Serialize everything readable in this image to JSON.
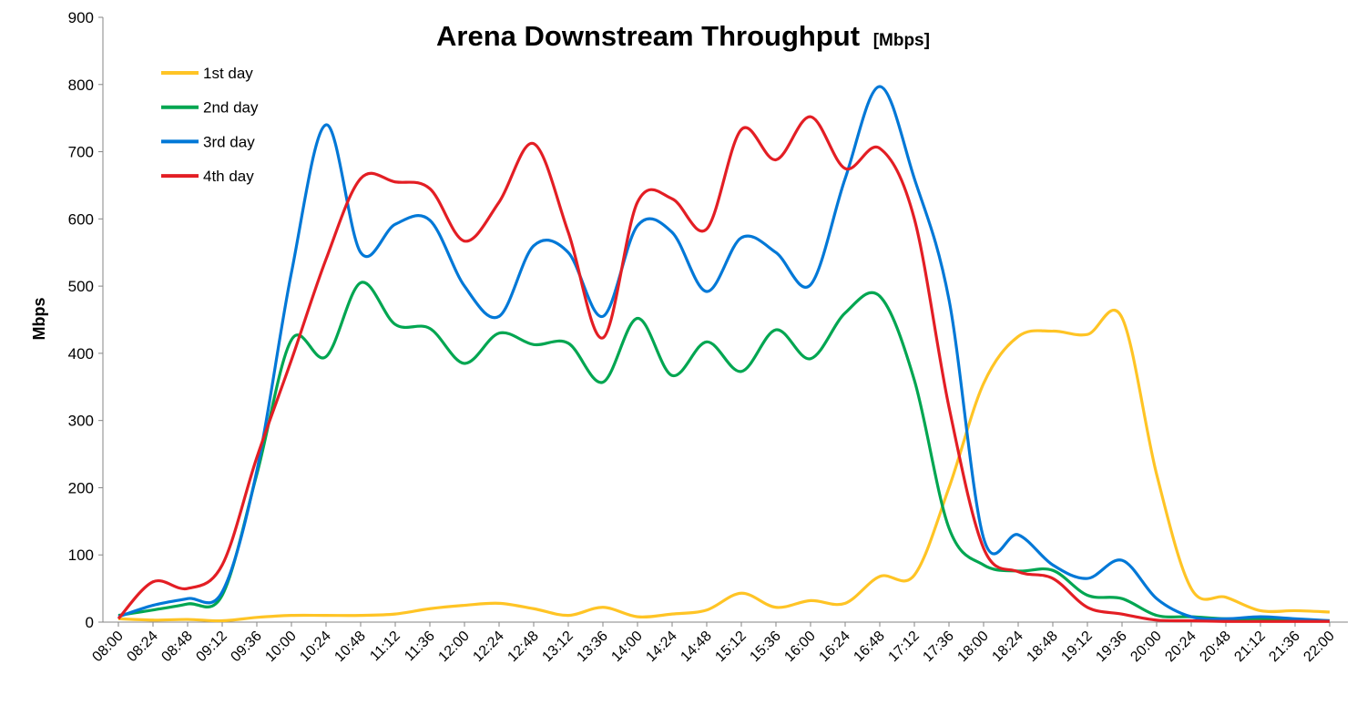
{
  "chart_data": {
    "type": "line",
    "title": "Arena Downstream Throughput",
    "title_unit": "[Mbps]",
    "xlabel": "",
    "ylabel": "Mbps",
    "ylim": [
      0,
      900
    ],
    "yticks": [
      0,
      100,
      200,
      300,
      400,
      500,
      600,
      700,
      800,
      900
    ],
    "grid": false,
    "legend_position": "top-left",
    "smooth": true,
    "categories": [
      "08:00",
      "08:24",
      "08:48",
      "09:12",
      "09:36",
      "10:00",
      "10:24",
      "10:48",
      "11:12",
      "11:36",
      "12:00",
      "12:24",
      "12:48",
      "13:12",
      "13:36",
      "14:00",
      "14:24",
      "14:48",
      "15:12",
      "15:36",
      "16:00",
      "16:24",
      "16:48",
      "17:12",
      "17:36",
      "18:00",
      "18:24",
      "18:48",
      "19:12",
      "19:36",
      "20:00",
      "20:24",
      "20:48",
      "21:12",
      "21:36",
      "22:00"
    ],
    "series": [
      {
        "name": "1st day",
        "color": "#FFC425",
        "values": [
          5,
          3,
          4,
          2,
          7,
          10,
          10,
          10,
          12,
          20,
          25,
          28,
          20,
          10,
          22,
          8,
          12,
          18,
          43,
          22,
          32,
          28,
          68,
          70,
          200,
          355,
          425,
          433,
          428,
          453,
          220,
          50,
          37,
          17,
          17,
          15
        ]
      },
      {
        "name": "2nd day",
        "color": "#00A651",
        "values": [
          10,
          18,
          27,
          40,
          220,
          420,
          395,
          505,
          443,
          437,
          385,
          430,
          413,
          415,
          357,
          452,
          367,
          417,
          373,
          435,
          392,
          460,
          485,
          360,
          140,
          85,
          76,
          77,
          40,
          35,
          10,
          8,
          5,
          5,
          3,
          2
        ]
      },
      {
        "name": "3rd day",
        "color": "#0078D7",
        "values": [
          8,
          25,
          35,
          45,
          225,
          520,
          740,
          550,
          592,
          598,
          500,
          455,
          560,
          550,
          455,
          590,
          580,
          492,
          572,
          550,
          502,
          660,
          797,
          660,
          480,
          125,
          130,
          85,
          65,
          92,
          35,
          8,
          5,
          8,
          5,
          2
        ]
      },
      {
        "name": "4th day",
        "color": "#E31E24",
        "values": [
          5,
          60,
          50,
          85,
          245,
          390,
          540,
          660,
          655,
          645,
          567,
          625,
          712,
          580,
          423,
          625,
          630,
          585,
          733,
          688,
          752,
          675,
          705,
          600,
          320,
          110,
          75,
          65,
          22,
          12,
          3,
          2,
          1,
          1,
          1,
          1
        ]
      }
    ]
  }
}
